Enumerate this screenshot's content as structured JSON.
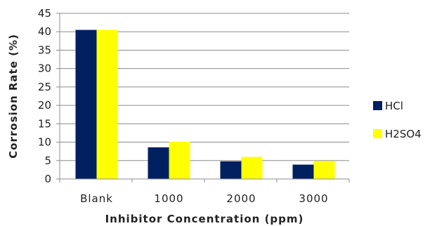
{
  "chart_data": {
    "type": "bar",
    "title": "",
    "xlabel": "Inhibitor Concentration (ppm)",
    "ylabel": "Corrosion Rate (%)",
    "categories": [
      "Blank",
      "1000",
      "2000",
      "3000"
    ],
    "ylim": [
      0,
      45
    ],
    "yticks": [
      0,
      5,
      10,
      15,
      20,
      25,
      30,
      35,
      40,
      45
    ],
    "grid": true,
    "legend_position": "right",
    "series": [
      {
        "name": "HCl",
        "color": "#002060",
        "values": [
          40.5,
          8.6,
          4.8,
          3.9
        ]
      },
      {
        "name": "H2SO4",
        "color": "#ffff00",
        "values": [
          40.5,
          10.1,
          6.0,
          4.9
        ]
      }
    ]
  }
}
